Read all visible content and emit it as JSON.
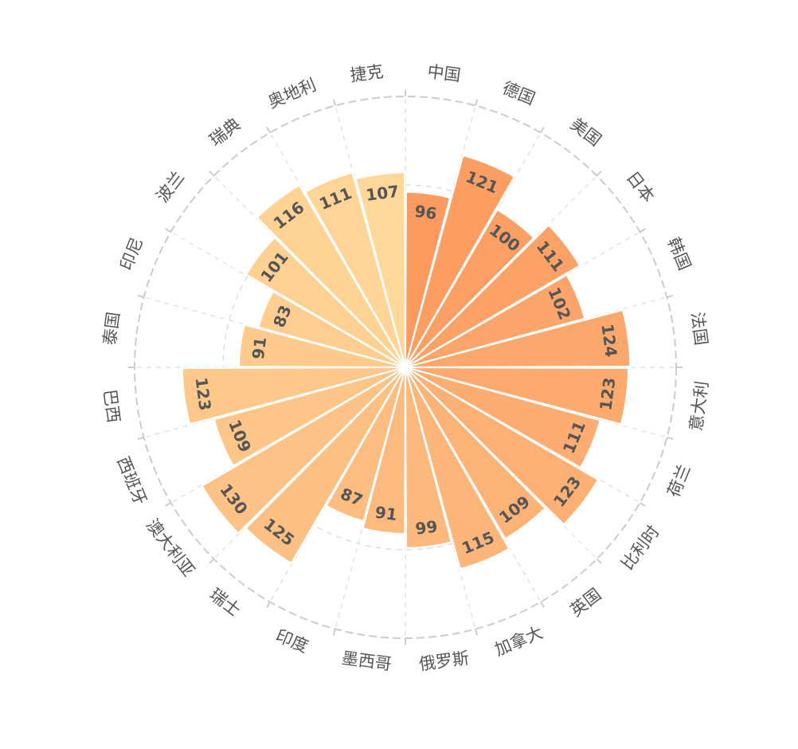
{
  "chart_data": {
    "type": "bar",
    "coordinate": "polar",
    "categories": [
      "中国",
      "德国",
      "美国",
      "日本",
      "韩国",
      "法国",
      "意大利",
      "荷兰",
      "比利时",
      "英国",
      "加拿大",
      "俄罗斯",
      "墨西哥",
      "印度",
      "瑞士",
      "澳大利亚",
      "西班牙",
      "巴西",
      "泰国",
      "印尼",
      "波兰",
      "瑞典",
      "奥地利",
      "捷克"
    ],
    "values": [
      96,
      121,
      100,
      111,
      102,
      124,
      123,
      111,
      123,
      109,
      115,
      99,
      91,
      87,
      125,
      130,
      109,
      123,
      91,
      83,
      101,
      116,
      111,
      107
    ],
    "colors": {
      "start": "#fc9a60",
      "end": "#fed899"
    },
    "grid": true,
    "rlim": [
      0,
      150
    ]
  }
}
